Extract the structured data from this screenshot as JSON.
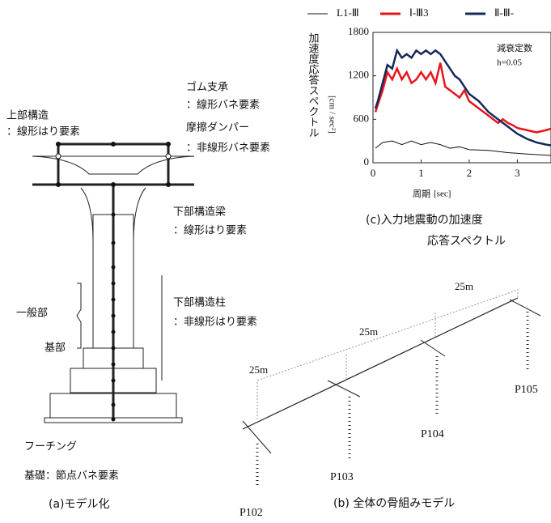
{
  "model": {
    "upper": "上部構造",
    "upper_elem": "：線形はり要素",
    "bearing": "ゴム支承",
    "bearing_elem": "：線形バネ要素",
    "damper": "摩擦ダンパー",
    "damper_elem": "：非線形バネ要素",
    "beam": "下部構造梁",
    "beam_elem": "：線形はり要素",
    "general": "一般部",
    "column": "下部構造柱",
    "column_elem": "：非線形はり要素",
    "base": "基部",
    "footing": "フーチング",
    "foundation": "基礎：節点バネ要素",
    "caption": "(a)モデル化"
  },
  "skeleton": {
    "spans": [
      "25m",
      "25m",
      "25m"
    ],
    "piers": [
      "P102",
      "P103",
      "P104",
      "P105"
    ],
    "caption": "(b)  全体の骨組みモデル"
  },
  "caption_c": [
    "(c)入力地震動の加速度",
    "応答スペクトル"
  ],
  "chart_data": {
    "type": "line",
    "y_label": "加速度応答スペクトル",
    "y_unit": "[cm / sec²]",
    "x_label": "周期",
    "x_unit": "[sec]",
    "annotations": [
      "減衰定数",
      "h=0.05"
    ],
    "xlim": [
      0,
      3.7
    ],
    "xticks": [
      0,
      1,
      2,
      3
    ],
    "ylim": [
      0,
      1800
    ],
    "yticks": [
      0,
      600,
      1200,
      1800
    ],
    "series": [
      {
        "name": "L1-Ⅲ",
        "color": "#111111",
        "x": [
          0.05,
          0.2,
          0.4,
          0.6,
          0.8,
          1.0,
          1.2,
          1.4,
          1.6,
          1.8,
          2.0,
          2.4,
          2.8,
          3.2,
          3.7
        ],
        "values": [
          200,
          280,
          300,
          250,
          300,
          250,
          280,
          250,
          200,
          220,
          180,
          170,
          140,
          120,
          100
        ]
      },
      {
        "name": "Ⅰ-Ⅲ3",
        "color": "#e8141c",
        "x": [
          0.05,
          0.1,
          0.2,
          0.3,
          0.4,
          0.5,
          0.6,
          0.7,
          0.8,
          0.9,
          1.0,
          1.1,
          1.2,
          1.3,
          1.4,
          1.5,
          1.6,
          1.7,
          1.8,
          1.9,
          2.0,
          2.1,
          2.2,
          2.3,
          2.4,
          2.5,
          2.6,
          2.7,
          2.8,
          2.9,
          3.0,
          3.2,
          3.4,
          3.6,
          3.7
        ],
        "values": [
          700,
          800,
          1000,
          1250,
          1150,
          1300,
          1150,
          1250,
          1100,
          1150,
          1250,
          1150,
          1250,
          1100,
          1380,
          1050,
          1000,
          950,
          900,
          1000,
          850,
          800,
          750,
          700,
          650,
          600,
          550,
          600,
          550,
          520,
          480,
          450,
          420,
          450,
          470
        ]
      },
      {
        "name": "Ⅱ-Ⅲ-",
        "color": "#14285a",
        "x": [
          0.05,
          0.1,
          0.2,
          0.3,
          0.4,
          0.5,
          0.6,
          0.7,
          0.8,
          0.9,
          1.0,
          1.1,
          1.2,
          1.3,
          1.4,
          1.5,
          1.6,
          1.7,
          1.8,
          1.9,
          2.0,
          2.2,
          2.4,
          2.6,
          2.8,
          3.0,
          3.2,
          3.4,
          3.6,
          3.7
        ],
        "values": [
          750,
          850,
          1100,
          1350,
          1300,
          1550,
          1450,
          1500,
          1450,
          1550,
          1500,
          1550,
          1500,
          1550,
          1500,
          1400,
          1300,
          1200,
          1150,
          1050,
          950,
          850,
          700,
          600,
          500,
          400,
          330,
          280,
          250,
          240
        ]
      }
    ]
  }
}
